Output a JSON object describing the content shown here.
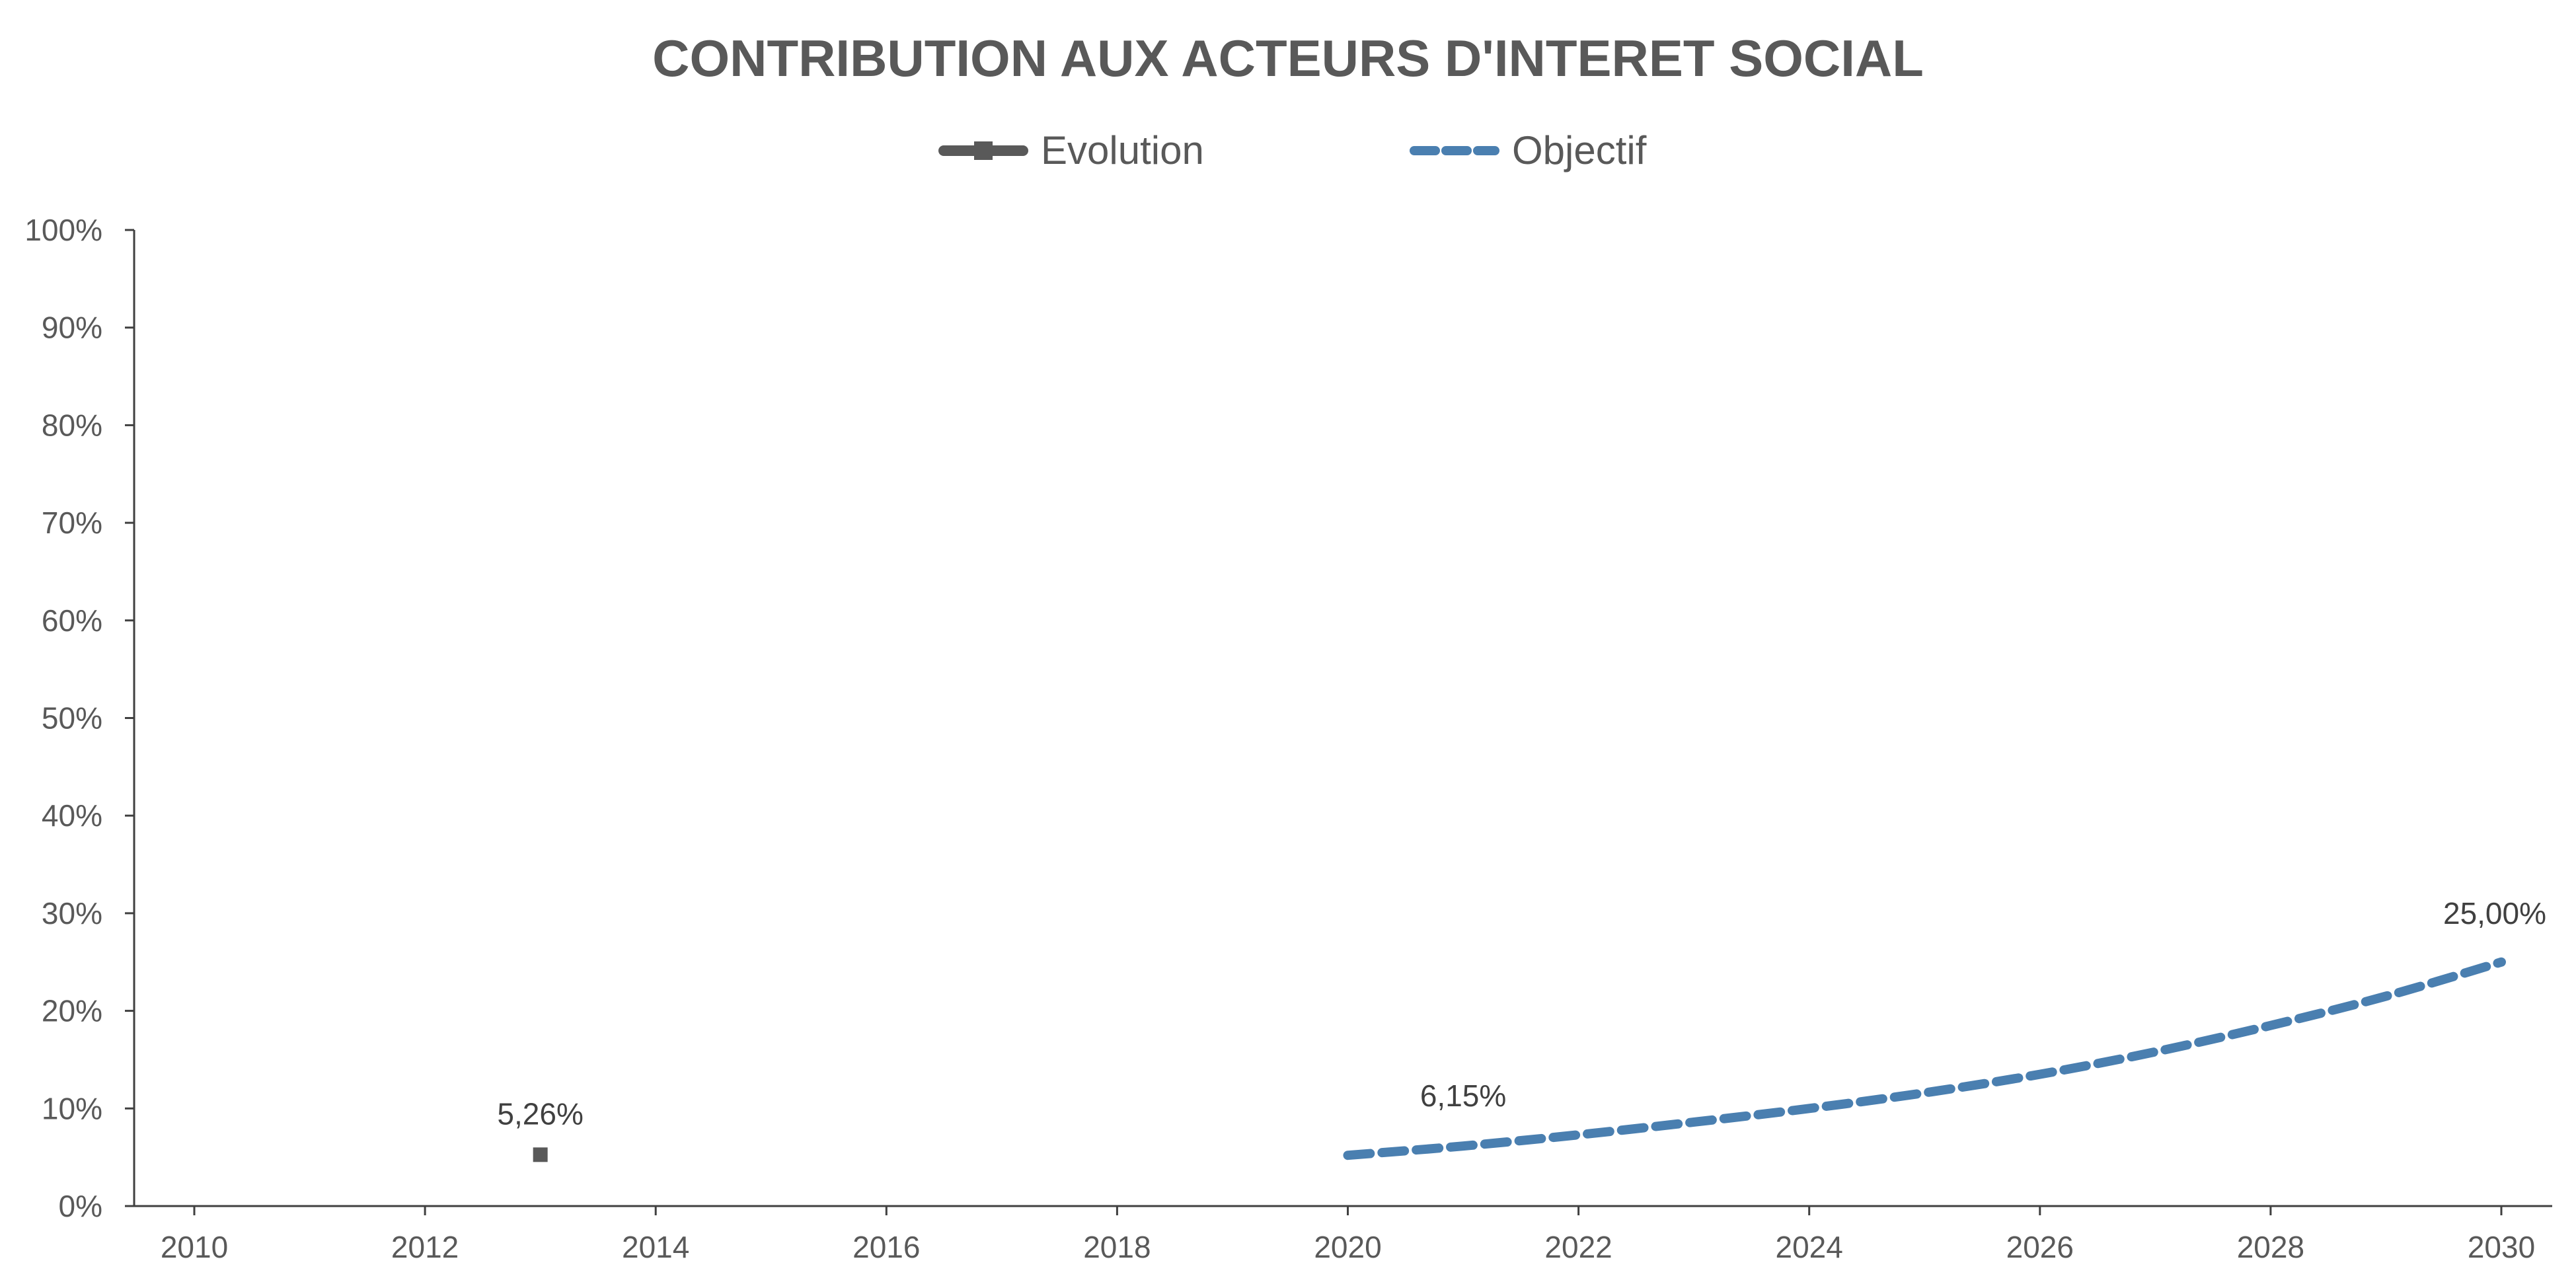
{
  "chart_data": {
    "type": "line",
    "title": "CONTRIBUTION AUX ACTEURS D'INTERET SOCIAL",
    "xlabel": "",
    "ylabel": "",
    "xlim": [
      2010,
      2030
    ],
    "ylim": [
      0,
      100
    ],
    "x_ticks": [
      "2010",
      "2012",
      "2014",
      "2016",
      "2018",
      "2020",
      "2022",
      "2024",
      "2026",
      "2028",
      "2030"
    ],
    "y_ticks": [
      "0%",
      "10%",
      "20%",
      "30%",
      "40%",
      "50%",
      "60%",
      "70%",
      "80%",
      "90%",
      "100%"
    ],
    "grid": false,
    "legend_position": "top-center",
    "series": [
      {
        "name": "Evolution",
        "color": "#595959",
        "style": "solid-with-square-marker",
        "points": [
          {
            "x": 2013,
            "y": 5.26,
            "label": "5,26%"
          }
        ]
      },
      {
        "name": "Objectif",
        "color": "#4a7fb0",
        "style": "dashed",
        "points": [
          {
            "x": 2020,
            "y": 5.2,
            "label": ""
          },
          {
            "x": 2021,
            "y": 6.15,
            "label": "6,15%"
          },
          {
            "x": 2022,
            "y": 7.3,
            "label": ""
          },
          {
            "x": 2023,
            "y": 8.6,
            "label": ""
          },
          {
            "x": 2024,
            "y": 10.0,
            "label": ""
          },
          {
            "x": 2025,
            "y": 11.6,
            "label": ""
          },
          {
            "x": 2026,
            "y": 13.5,
            "label": ""
          },
          {
            "x": 2027,
            "y": 15.8,
            "label": ""
          },
          {
            "x": 2028,
            "y": 18.5,
            "label": ""
          },
          {
            "x": 2029,
            "y": 21.5,
            "label": ""
          },
          {
            "x": 2030,
            "y": 25.0,
            "label": "25,00%"
          }
        ]
      }
    ]
  }
}
